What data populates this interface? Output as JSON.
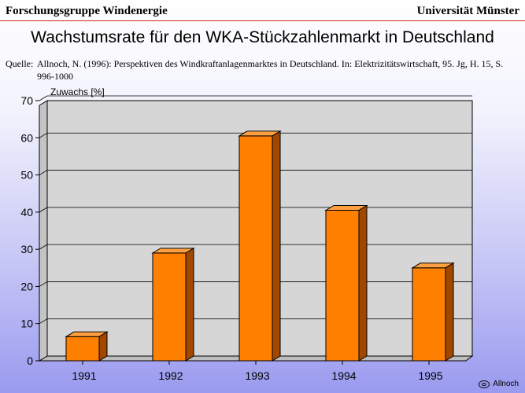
{
  "header": {
    "left": "Forschungsgruppe Windenergie",
    "right": "Universität Münster"
  },
  "source": {
    "label": "Quelle:",
    "text": "Allnoch, N. (1996): Perspektiven des Windkraftanlagenmarktes in Deutschland. In: Elektrizitätswirtschaft, 95. Jg, H. 15, S. 996-1000"
  },
  "copyright": "Allnoch",
  "colors": {
    "bar_front": "#ff8000",
    "bar_top": "#ffa040",
    "bar_side": "#a04800",
    "plot_bg": "#d6d6d6",
    "header_rule": "#d02020"
  },
  "chart_data": {
    "type": "bar",
    "title": "Wachstumsrate für den WKA-Stückzahlenmarkt in Deutschland",
    "ylabel": "Zuwachs [%]",
    "xlabel": "",
    "categories": [
      "1991",
      "1992",
      "1993",
      "1994",
      "1995"
    ],
    "values": [
      6.5,
      29,
      60.5,
      40.5,
      25
    ],
    "ylim": [
      0,
      70
    ],
    "yticks": [
      0,
      10,
      20,
      30,
      40,
      50,
      60,
      70
    ],
    "grid": true,
    "style": "3d"
  }
}
